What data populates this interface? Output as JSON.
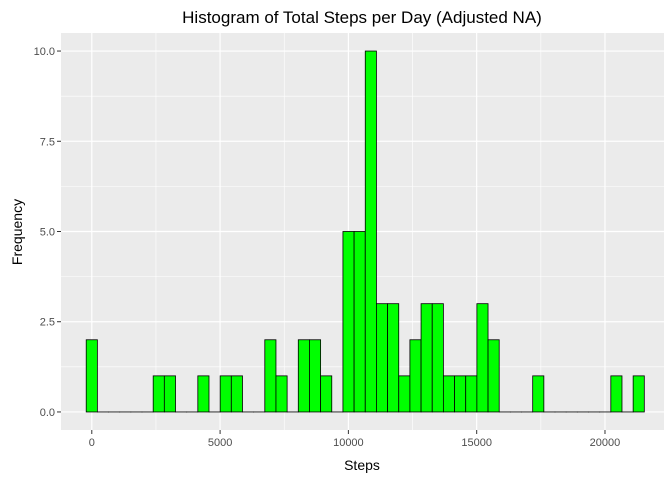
{
  "chart_data": {
    "type": "bar",
    "title": "Histogram of Total Steps per Day (Adjusted NA)",
    "xlabel": "Steps",
    "ylabel": "Frequency",
    "xlim": [
      -1200,
      22300
    ],
    "ylim": [
      -0.5,
      10.5
    ],
    "x_ticks": [
      0,
      5000,
      10000,
      15000,
      20000
    ],
    "x_tick_labels": [
      "0",
      "5000",
      "10000",
      "15000",
      "20000"
    ],
    "y_ticks": [
      0,
      2.5,
      5,
      7.5,
      10
    ],
    "y_tick_labels": [
      "0.0",
      "2.5",
      "5.0",
      "7.5",
      "10.0"
    ],
    "bin_width": 435,
    "bin_centers": [
      0,
      435,
      870,
      1305,
      1740,
      2175,
      2610,
      3045,
      3480,
      3915,
      4350,
      4785,
      5220,
      5655,
      6090,
      6525,
      6960,
      7395,
      7830,
      8265,
      8700,
      9135,
      9570,
      10005,
      10440,
      10875,
      11310,
      11745,
      12180,
      12615,
      13050,
      13485,
      13920,
      14355,
      14790,
      15225,
      15660,
      16095,
      16530,
      16965,
      17400,
      17835,
      18270,
      18705,
      19140,
      19575,
      20010,
      20445,
      20880,
      21315
    ],
    "values": [
      2,
      0,
      0,
      0,
      0,
      0,
      1,
      1,
      0,
      0,
      1,
      0,
      1,
      1,
      0,
      0,
      2,
      1,
      0,
      2,
      2,
      1,
      0,
      5,
      5,
      10,
      3,
      3,
      1,
      2,
      3,
      3,
      1,
      1,
      1,
      3,
      2,
      0,
      0,
      0,
      1,
      0,
      0,
      0,
      0,
      0,
      0,
      1,
      0,
      1
    ],
    "bar_fill": "#00ff00",
    "bar_outline": "#000000",
    "panel_background": "#ebebeb",
    "grid_color": "#ffffff",
    "grid": true,
    "legend": "none"
  }
}
